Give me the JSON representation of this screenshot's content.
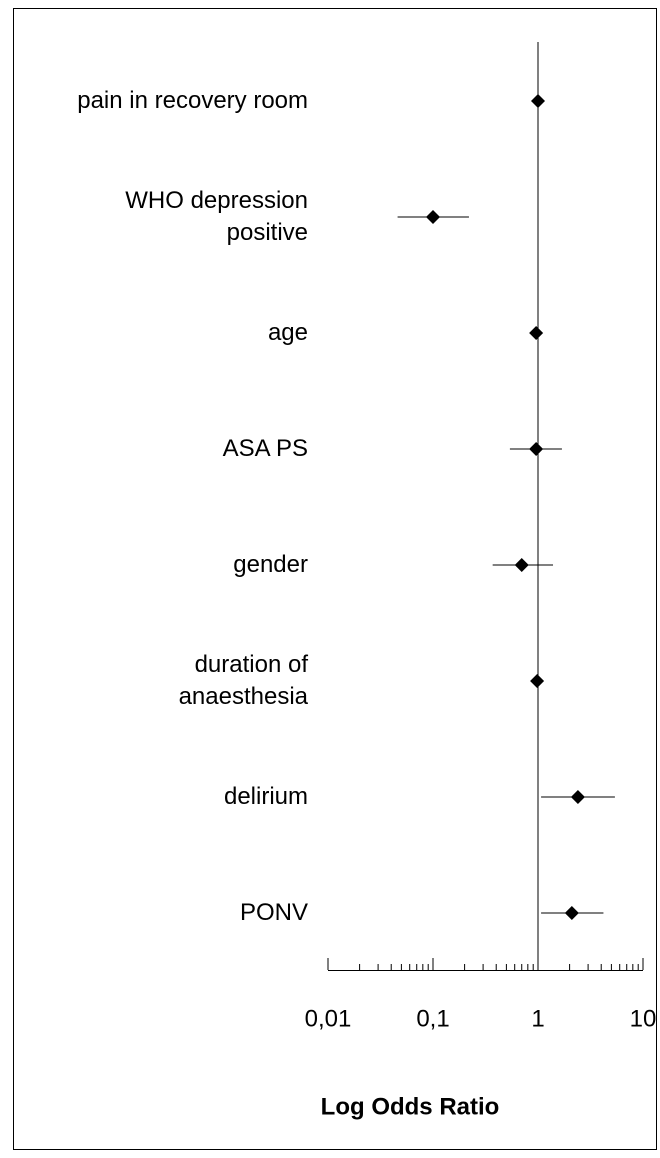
{
  "chart_data": {
    "type": "forest",
    "xlabel": "Log Odds Ratio",
    "categories": [
      "pain in recovery room",
      "WHO depression\npositive",
      "age",
      "ASA PS",
      "gender",
      "duration of \nanaesthesia",
      "delirium",
      "PONV"
    ],
    "values": [
      1.0,
      0.1,
      0.96,
      0.96,
      0.7,
      0.98,
      2.4,
      2.1
    ],
    "ci_lower": [
      null,
      0.046,
      null,
      0.54,
      0.37,
      null,
      1.07,
      1.07
    ],
    "ci_upper": [
      null,
      0.22,
      null,
      1.69,
      1.39,
      null,
      5.4,
      4.2
    ],
    "color": "#000000",
    "xscale": "log",
    "xlim": [
      0.01,
      10
    ],
    "xticks": [
      {
        "value": 0.01,
        "label": "0,01"
      },
      {
        "value": 0.1,
        "label": "0,1"
      },
      1,
      10
    ],
    "xticks_minor": [
      0.02,
      0.03,
      0.04,
      0.05,
      0.06,
      0.07,
      0.08,
      0.09,
      0.2,
      0.3,
      0.4,
      0.5,
      0.6,
      0.7,
      0.8,
      0.9,
      2,
      3,
      4,
      5,
      6,
      7,
      8,
      9
    ],
    "reference_line": 1
  }
}
